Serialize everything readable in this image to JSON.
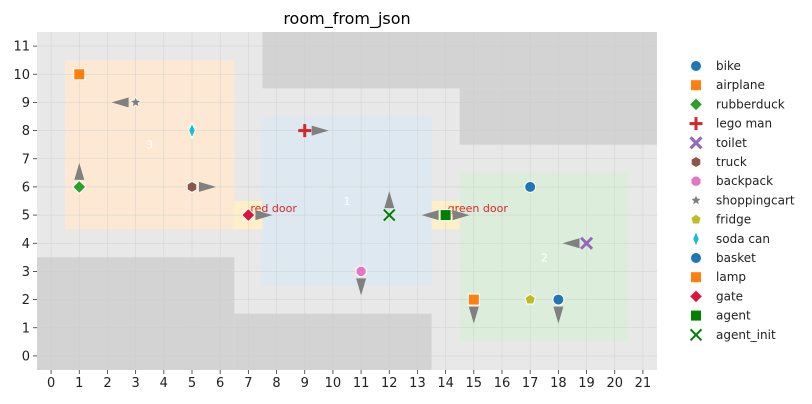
{
  "chart_data": {
    "type": "scatter",
    "title": "room_from_json",
    "xlim": [
      -0.5,
      21.5
    ],
    "ylim": [
      -0.5,
      11.5
    ],
    "xticks": [
      "0",
      "1",
      "2",
      "3",
      "4",
      "5",
      "6",
      "7",
      "8",
      "9",
      "10",
      "11",
      "12",
      "13",
      "14",
      "15",
      "16",
      "17",
      "18",
      "19",
      "20",
      "21"
    ],
    "yticks": [
      "0",
      "1",
      "2",
      "3",
      "4",
      "5",
      "6",
      "7",
      "8",
      "9",
      "10",
      "11"
    ],
    "grid": true,
    "legend_position": "right",
    "colors": {
      "floor": "#e8e8e8",
      "wall": "#d3d3d3",
      "room_3": "#fde9d3",
      "room_1": "#dde8f0",
      "room_2": "#dceedb",
      "door": "#fdf0c8",
      "arrow": "#808080"
    },
    "walls": [
      {
        "x0": 7.5,
        "x1": 21.5,
        "y0": 9.5,
        "y1": 11.5
      },
      {
        "x0": 14.5,
        "x1": 21.5,
        "y0": 7.5,
        "y1": 9.5
      },
      {
        "x0": -0.5,
        "x1": 6.5,
        "y0": -0.5,
        "y1": 3.5
      },
      {
        "x0": 6.5,
        "x1": 13.5,
        "y0": -0.5,
        "y1": 1.5
      }
    ],
    "rooms": [
      {
        "label": "3",
        "x0": 0.5,
        "x1": 6.5,
        "y0": 4.5,
        "y1": 10.5,
        "label_x": 3.5,
        "label_y": 7.5,
        "color_key": "room_3"
      },
      {
        "label": "1",
        "x0": 7.5,
        "x1": 13.5,
        "y0": 2.5,
        "y1": 8.5,
        "label_x": 10.5,
        "label_y": 5.5,
        "color_key": "room_1"
      },
      {
        "label": "2",
        "x0": 14.5,
        "x1": 20.5,
        "y0": 0.5,
        "y1": 6.5,
        "label_x": 17.5,
        "label_y": 3.5,
        "color_key": "room_2"
      }
    ],
    "doors": [
      {
        "label": "red door",
        "x": 7,
        "y": 5
      },
      {
        "label": "green door",
        "x": 14,
        "y": 5
      }
    ],
    "series": [
      {
        "name": "bike",
        "marker": "circle",
        "color": "#1f77b4",
        "points": [
          {
            "x": 17,
            "y": 6,
            "dir": null
          }
        ]
      },
      {
        "name": "airplane",
        "marker": "square",
        "color": "#ff7f0e",
        "points": [
          {
            "x": 1,
            "y": 10,
            "dir": null
          }
        ]
      },
      {
        "name": "rubberduck",
        "marker": "diamond",
        "color": "#2ca02c",
        "points": [
          {
            "x": 1,
            "y": 6,
            "dir": "up"
          }
        ]
      },
      {
        "name": "lego man",
        "marker": "plus",
        "color": "#d62728",
        "points": [
          {
            "x": 9,
            "y": 8,
            "dir": "right"
          }
        ]
      },
      {
        "name": "toilet",
        "marker": "x",
        "color": "#9467bd",
        "points": [
          {
            "x": 19,
            "y": 4,
            "dir": "left"
          }
        ]
      },
      {
        "name": "truck",
        "marker": "hexagon",
        "color": "#8c564b",
        "points": [
          {
            "x": 5,
            "y": 6,
            "dir": "right"
          }
        ]
      },
      {
        "name": "backpack",
        "marker": "octagon",
        "color": "#e377c2",
        "points": [
          {
            "x": 11,
            "y": 3,
            "dir": "down"
          }
        ]
      },
      {
        "name": "shoppingcart",
        "marker": "star",
        "color": "#7f7f7f",
        "points": [
          {
            "x": 3,
            "y": 9,
            "dir": "left"
          }
        ]
      },
      {
        "name": "fridge",
        "marker": "pentagon",
        "color": "#bcbd22",
        "points": [
          {
            "x": 17,
            "y": 2,
            "dir": null
          }
        ]
      },
      {
        "name": "soda can",
        "marker": "thin-diamond",
        "color": "#17becf",
        "points": [
          {
            "x": 5,
            "y": 8,
            "dir": null
          }
        ]
      },
      {
        "name": "basket",
        "marker": "circle",
        "color": "#1f77b4",
        "points": [
          {
            "x": 18,
            "y": 2,
            "dir": "down"
          }
        ]
      },
      {
        "name": "lamp",
        "marker": "square",
        "color": "#ff7f0e",
        "points": [
          {
            "x": 15,
            "y": 2,
            "dir": "down"
          }
        ]
      },
      {
        "name": "gate",
        "marker": "diamond",
        "color": "#dc143c",
        "points": [
          {
            "x": 7,
            "y": 5,
            "dir": "right"
          }
        ]
      },
      {
        "name": "agent",
        "marker": "square",
        "color": "#008000",
        "points": [
          {
            "x": 14,
            "y": 5,
            "dir": "left"
          }
        ]
      },
      {
        "name": "agent_init",
        "marker": "x-thin",
        "color": "#008000",
        "points": [
          {
            "x": 12,
            "y": 5,
            "dir": "up"
          }
        ]
      }
    ],
    "extra_arrows": [
      {
        "x": 14,
        "y": 5,
        "dir": "right"
      }
    ]
  }
}
